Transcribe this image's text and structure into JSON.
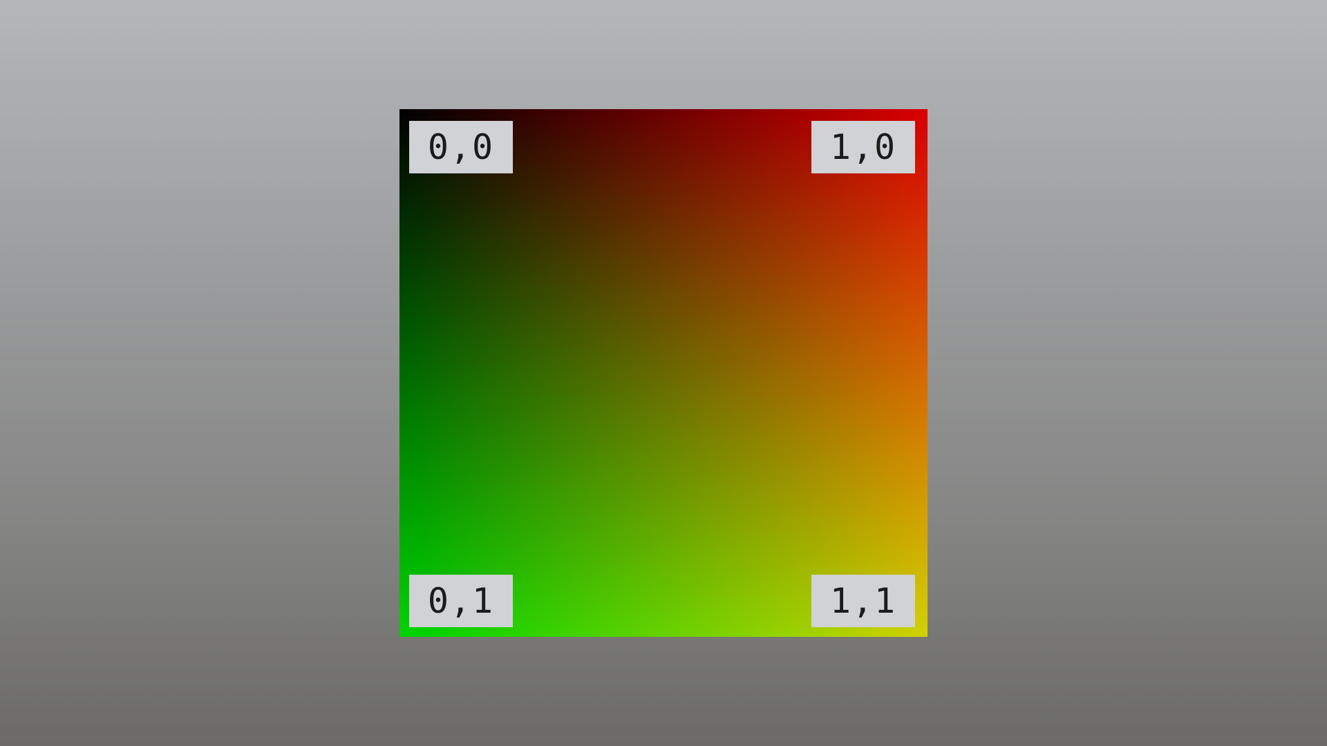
{
  "uv_quad": {
    "colors": {
      "top_left": "#000000",
      "top_right": "#ff0000",
      "bottom_left": "#00ff00",
      "bottom_right": "#ffff00"
    },
    "labels": {
      "top_left": "0,0",
      "top_right": "1,0",
      "bottom_left": "0,1",
      "bottom_right": "1,1"
    }
  },
  "background": {
    "top_color": "#b4b7ba",
    "bottom_color": "#6b6a66"
  }
}
